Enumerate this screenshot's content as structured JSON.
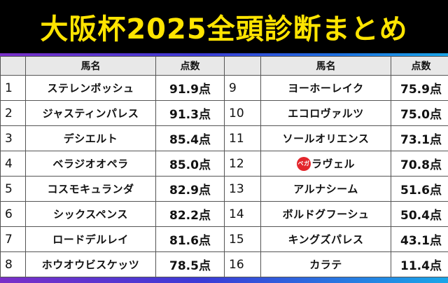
{
  "title": "大阪杯2025全頭診断まとめ",
  "headers": {
    "name": "馬名",
    "score": "点数"
  },
  "left": [
    {
      "no": "1",
      "name": "ステレンボッシュ",
      "score": "91.9点"
    },
    {
      "no": "2",
      "name": "ジャスティンパレス",
      "score": "91.3点"
    },
    {
      "no": "3",
      "name": "デシエルト",
      "score": "85.4点"
    },
    {
      "no": "4",
      "name": "ベラジオオペラ",
      "score": "85.0点"
    },
    {
      "no": "5",
      "name": "コスモキュランダ",
      "score": "82.9点"
    },
    {
      "no": "6",
      "name": "シックスペンス",
      "score": "82.2点"
    },
    {
      "no": "7",
      "name": "ロードデルレイ",
      "score": "81.6点"
    },
    {
      "no": "8",
      "name": "ホウオウビスケッツ",
      "score": "78.5点"
    }
  ],
  "right": [
    {
      "no": "9",
      "name": "ヨーホーレイク",
      "score": "75.9点"
    },
    {
      "no": "10",
      "name": "エコロヴァルツ",
      "score": "75.0点"
    },
    {
      "no": "11",
      "name": "ソールオリエンス",
      "score": "73.1点"
    },
    {
      "no": "12",
      "name": "ラヴェル",
      "score": "70.8点",
      "logo": "ペガ"
    },
    {
      "no": "13",
      "name": "アルナシーム",
      "score": "51.6点"
    },
    {
      "no": "14",
      "name": "ボルドグフーシュ",
      "score": "50.4点"
    },
    {
      "no": "15",
      "name": "キングズパレス",
      "score": "43.1点"
    },
    {
      "no": "16",
      "name": "カラテ",
      "score": "11.4点"
    }
  ],
  "colors": {
    "title": "#ffe400",
    "logo": "#e3262c"
  }
}
